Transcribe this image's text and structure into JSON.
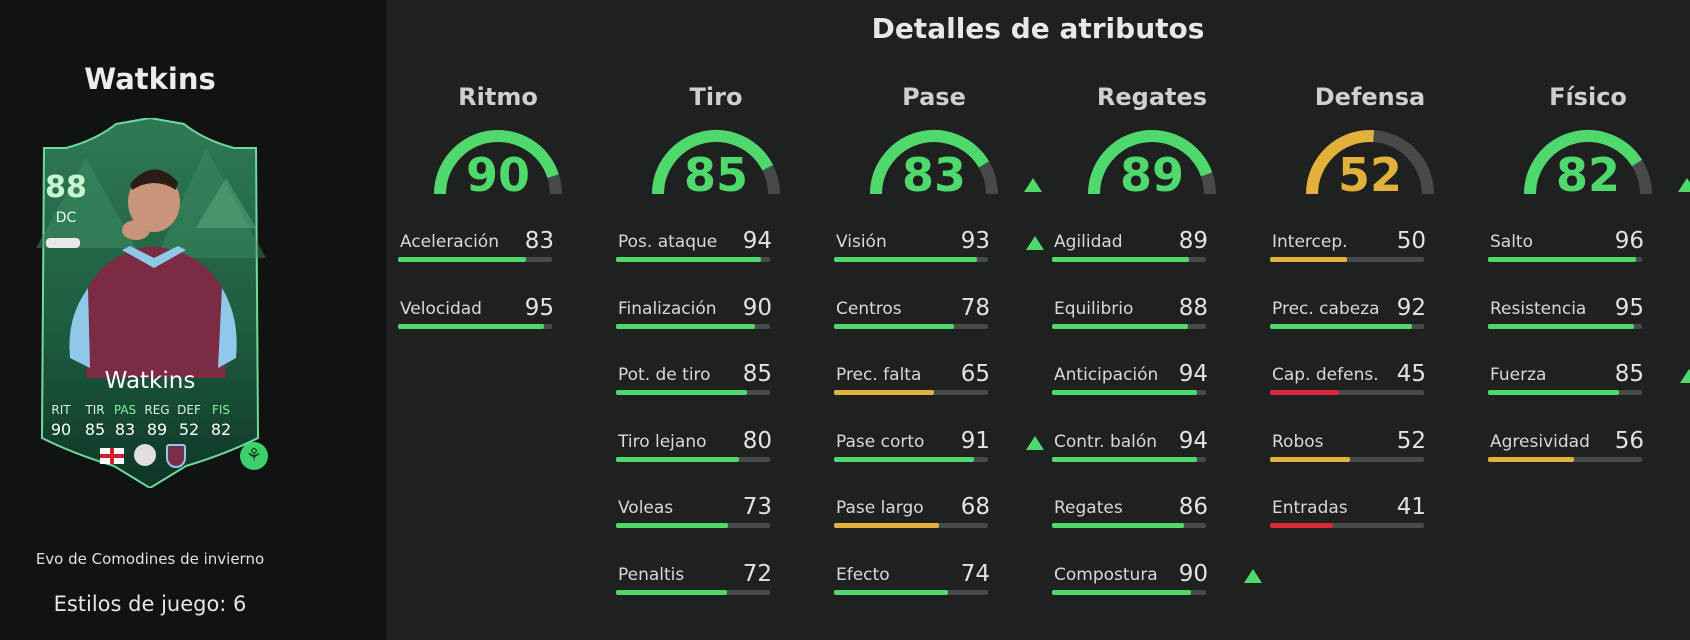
{
  "player": {
    "name": "Watkins"
  },
  "card": {
    "overall": "88",
    "position": "DC",
    "name": "Watkins",
    "stats": [
      {
        "label": "RIT",
        "value": "90",
        "highlight": false
      },
      {
        "label": "TIR",
        "value": "85",
        "highlight": false
      },
      {
        "label": "PAS",
        "value": "83",
        "highlight": true
      },
      {
        "label": "REG",
        "value": "89",
        "highlight": false
      },
      {
        "label": "DEF",
        "value": "52",
        "highlight": false
      },
      {
        "label": "FIS",
        "value": "82",
        "highlight": true
      }
    ],
    "icons": [
      "england-flag-icon",
      "premier-league-icon",
      "aston-villa-crest-icon",
      "evolution-badge-icon"
    ]
  },
  "evo_title": "Evo de Comodines de invierno",
  "styles_line": "Estilos de juego: 6",
  "section_title": "Detalles de atributos",
  "colors": {
    "high": "#4fd86b",
    "mid": "#e2b13c",
    "low": "#d8283a",
    "track": "#474a49"
  },
  "categories": [
    {
      "name": "Ritmo",
      "value": 90,
      "up": false,
      "stats": [
        {
          "label": "Aceleración",
          "value": 83,
          "up": false
        },
        {
          "label": "Velocidad",
          "value": 95,
          "up": false
        }
      ]
    },
    {
      "name": "Tiro",
      "value": 85,
      "up": false,
      "stats": [
        {
          "label": "Pos. ataque",
          "value": 94,
          "up": false
        },
        {
          "label": "Finalización",
          "value": 90,
          "up": false
        },
        {
          "label": "Pot. de tiro",
          "value": 85,
          "up": false
        },
        {
          "label": "Tiro lejano",
          "value": 80,
          "up": false
        },
        {
          "label": "Voleas",
          "value": 73,
          "up": false
        },
        {
          "label": "Penaltis",
          "value": 72,
          "up": false
        }
      ]
    },
    {
      "name": "Pase",
      "value": 83,
      "up": true,
      "stats": [
        {
          "label": "Visión",
          "value": 93,
          "up": true
        },
        {
          "label": "Centros",
          "value": 78,
          "up": false
        },
        {
          "label": "Prec. falta",
          "value": 65,
          "up": false
        },
        {
          "label": "Pase corto",
          "value": 91,
          "up": true
        },
        {
          "label": "Pase largo",
          "value": 68,
          "up": false
        },
        {
          "label": "Efecto",
          "value": 74,
          "up": false
        }
      ]
    },
    {
      "name": "Regates",
      "value": 89,
      "up": false,
      "stats": [
        {
          "label": "Agilidad",
          "value": 89,
          "up": false
        },
        {
          "label": "Equilibrio",
          "value": 88,
          "up": false
        },
        {
          "label": "Anticipación",
          "value": 94,
          "up": false
        },
        {
          "label": "Contr. balón",
          "value": 94,
          "up": false
        },
        {
          "label": "Regates",
          "value": 86,
          "up": false
        },
        {
          "label": "Compostura",
          "value": 90,
          "up": true
        }
      ]
    },
    {
      "name": "Defensa",
      "value": 52,
      "up": false,
      "stats": [
        {
          "label": "Intercep.",
          "value": 50,
          "up": false
        },
        {
          "label": "Prec. cabeza",
          "value": 92,
          "up": false
        },
        {
          "label": "Cap. defens.",
          "value": 45,
          "up": false
        },
        {
          "label": "Robos",
          "value": 52,
          "up": false
        },
        {
          "label": "Entradas",
          "value": 41,
          "up": false
        }
      ]
    },
    {
      "name": "Físico",
      "value": 82,
      "up": true,
      "stats": [
        {
          "label": "Salto",
          "value": 96,
          "up": false
        },
        {
          "label": "Resistencia",
          "value": 95,
          "up": false
        },
        {
          "label": "Fuerza",
          "value": 85,
          "up": true
        },
        {
          "label": "Agresividad",
          "value": 56,
          "up": false
        }
      ]
    }
  ]
}
